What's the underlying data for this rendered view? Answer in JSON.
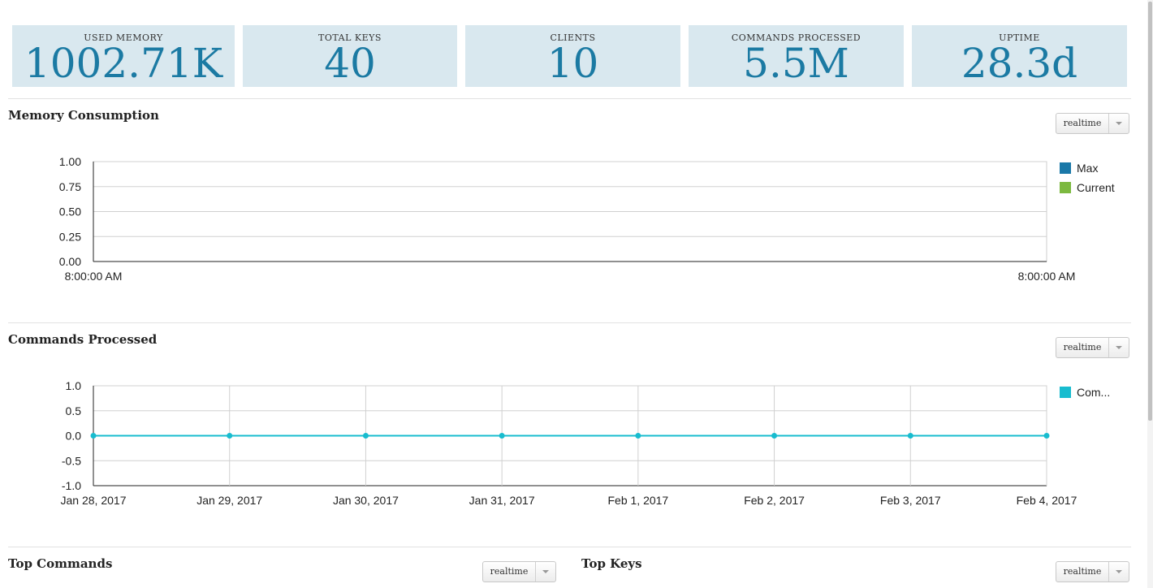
{
  "stats": [
    {
      "label": "USED MEMORY",
      "value": "1002.71K"
    },
    {
      "label": "TOTAL KEYS",
      "value": "40"
    },
    {
      "label": "CLIENTS",
      "value": "10"
    },
    {
      "label": "COMMANDS PROCESSED",
      "value": "5.5M"
    },
    {
      "label": "UPTIME",
      "value": "28.3d"
    }
  ],
  "memory": {
    "title": "Memory Consumption",
    "range_label": "realtime"
  },
  "commands": {
    "title": "Commands Processed",
    "range_label": "realtime"
  },
  "top_commands": {
    "title": "Top Commands",
    "range_label": "realtime"
  },
  "top_keys": {
    "title": "Top Keys",
    "range_label": "realtime"
  },
  "colors": {
    "stat_bg": "#d9e8ef",
    "stat_value": "#1b7aa3",
    "max_series": "#1a78a8",
    "current_series": "#7cb940",
    "commands_series": "#18bccf"
  },
  "chart_data": [
    {
      "type": "line",
      "y_ticks": [
        "1.00",
        "0.75",
        "0.50",
        "0.25",
        "0.00"
      ],
      "ylim": [
        0,
        1
      ],
      "x_tick_labels": [
        "8:00:00 AM",
        "8:00:00 AM"
      ],
      "grid": true,
      "legend_position": "right",
      "series": [
        {
          "name": "Max",
          "values": []
        },
        {
          "name": "Current",
          "values": []
        }
      ]
    },
    {
      "type": "line",
      "y_ticks": [
        "1.0",
        "0.5",
        "0.0",
        "-0.5",
        "-1.0"
      ],
      "ylim": [
        -1,
        1
      ],
      "x": [
        "Jan 28, 2017",
        "Jan 29, 2017",
        "Jan 30, 2017",
        "Jan 31, 2017",
        "Feb 1, 2017",
        "Feb 2, 2017",
        "Feb 3, 2017",
        "Feb 4, 2017"
      ],
      "grid": true,
      "legend_position": "right",
      "series": [
        {
          "name": "Com...",
          "values": [
            0,
            0,
            0,
            0,
            0,
            0,
            0,
            0
          ]
        }
      ]
    }
  ]
}
